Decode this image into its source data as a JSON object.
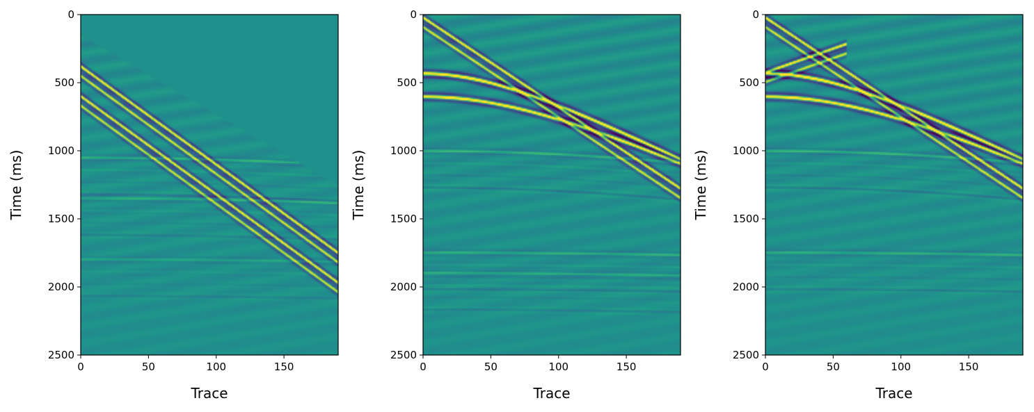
{
  "figure": {
    "panel_count": 3,
    "colormap": "viridis"
  },
  "chart_data": [
    {
      "type": "heatmap",
      "title": "",
      "xlabel": "Trace",
      "ylabel": "Time (ms)",
      "xlim": [
        0,
        190
      ],
      "ylim": [
        2500,
        0
      ],
      "xticks": [
        0,
        50,
        100,
        150
      ],
      "yticks": [
        0,
        500,
        1000,
        1500,
        2000,
        2500
      ],
      "grid": false,
      "features": [
        {
          "kind": "linear",
          "t0": 380,
          "slope": 7.2,
          "amp": 1.0,
          "muted": true
        },
        {
          "kind": "linear",
          "t0": 600,
          "slope": 7.2,
          "amp": 0.95,
          "muted": true
        },
        {
          "kind": "hyperbola",
          "t0": 1050,
          "v": 0.45,
          "amp": 0.35
        },
        {
          "kind": "hyperbola",
          "t0": 1350,
          "v": 0.5,
          "amp": 0.3
        },
        {
          "kind": "hyperbola",
          "t0": 1800,
          "v": 0.6,
          "amp": 0.25
        },
        {
          "kind": "mute_line",
          "t0": 150,
          "slope": 5.8
        }
      ]
    },
    {
      "type": "heatmap",
      "title": "",
      "xlabel": "Trace",
      "ylabel": "Time (ms)",
      "xlim": [
        0,
        190
      ],
      "ylim": [
        2500,
        0
      ],
      "xticks": [
        0,
        50,
        100,
        150
      ],
      "yticks": [
        0,
        500,
        1000,
        1500,
        2000,
        2500
      ],
      "grid": false,
      "features": [
        {
          "kind": "linear",
          "t0": 20,
          "slope": 6.6,
          "amp": 1.0
        },
        {
          "kind": "hyperbola_strong",
          "t0": 430,
          "v": 0.155,
          "amp": 1.0
        },
        {
          "kind": "hyperbola_strong",
          "t0": 600,
          "v": 0.165,
          "amp": 0.9
        },
        {
          "kind": "hyperbola",
          "t0": 1000,
          "v": 0.35,
          "amp": 0.4
        },
        {
          "kind": "hyperbola",
          "t0": 1750,
          "v": 0.6,
          "amp": 0.35
        },
        {
          "kind": "hyperbola",
          "t0": 1900,
          "v": 0.55,
          "amp": 0.3
        }
      ]
    },
    {
      "type": "heatmap",
      "title": "",
      "xlabel": "Trace",
      "ylabel": "Time (ms)",
      "xlim": [
        0,
        190
      ],
      "ylim": [
        2500,
        0
      ],
      "xticks": [
        0,
        50,
        100,
        150
      ],
      "yticks": [
        0,
        500,
        1000,
        1500,
        2000,
        2500
      ],
      "grid": false,
      "features": [
        {
          "kind": "linear",
          "t0": 20,
          "slope": 6.6,
          "amp": 1.0
        },
        {
          "kind": "linear",
          "t0": 420,
          "slope": -3.5,
          "amp": 0.9,
          "maxtrace": 60
        },
        {
          "kind": "hyperbola_strong",
          "t0": 430,
          "v": 0.155,
          "amp": 1.0
        },
        {
          "kind": "hyperbola_strong",
          "t0": 600,
          "v": 0.165,
          "amp": 0.9
        },
        {
          "kind": "hyperbola",
          "t0": 1000,
          "v": 0.35,
          "amp": 0.4
        },
        {
          "kind": "hyperbola",
          "t0": 1750,
          "v": 0.6,
          "amp": 0.35
        }
      ]
    }
  ]
}
